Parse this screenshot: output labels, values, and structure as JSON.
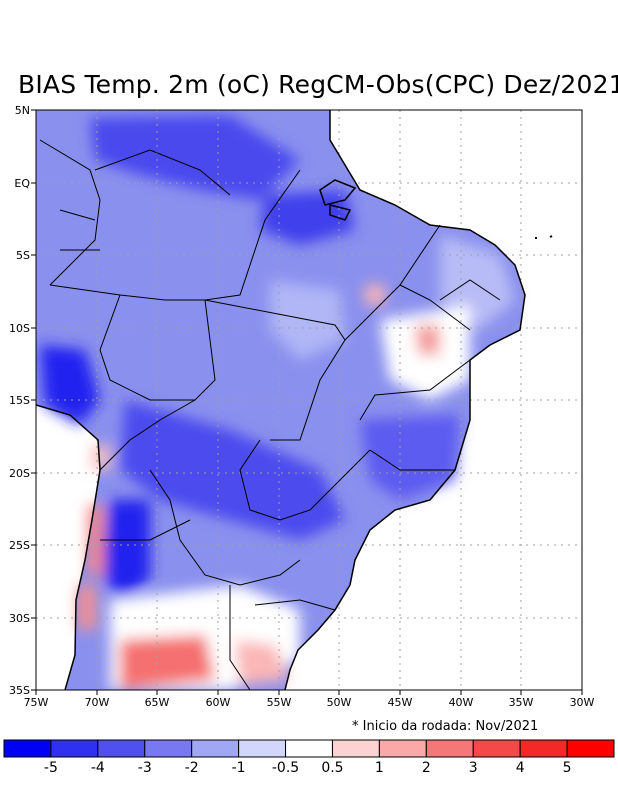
{
  "title": "BIAS Temp. 2m (oC) RegCM-Obs(CPC) Dez/2021",
  "note": "* Inicio da rodada: Nov/2021",
  "lat_labels": [
    "5N",
    "EQ",
    "5S",
    "10S",
    "15S",
    "20S",
    "25S",
    "30S",
    "35S"
  ],
  "lon_labels": [
    "75W",
    "70W",
    "65W",
    "60W",
    "55W",
    "50W",
    "45W",
    "40W",
    "35W",
    "30W"
  ],
  "extent": {
    "lon": [
      -75,
      -30
    ],
    "lat": [
      -35,
      5
    ]
  },
  "legend": {
    "labels": [
      "-5",
      "-4",
      "-3",
      "-2",
      "-1",
      "-0.5",
      "0.5",
      "1",
      "2",
      "3",
      "4",
      "5"
    ],
    "colors": [
      "#0000f5",
      "#3030f0",
      "#5050f0",
      "#7878f0",
      "#a0a8f5",
      "#d2d6fa",
      "#ffffff",
      "#fdd2d2",
      "#faa8a8",
      "#f57878",
      "#f54848",
      "#f52828",
      "#ff0000"
    ]
  }
}
